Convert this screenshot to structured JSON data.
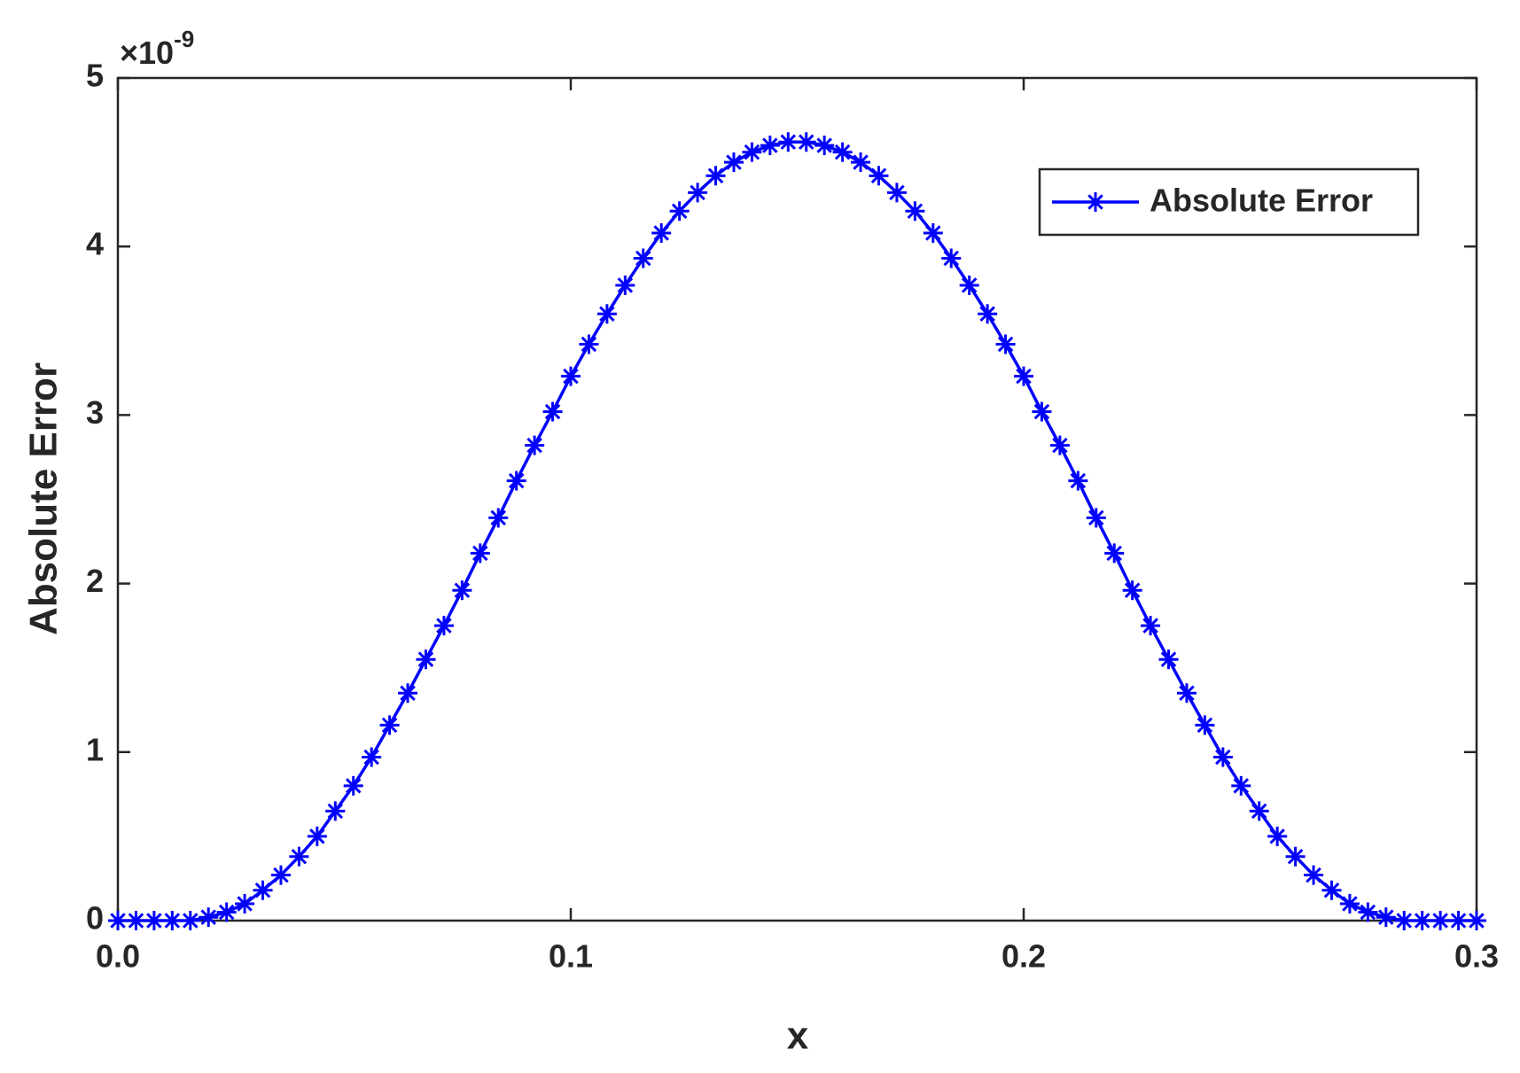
{
  "chart_data": {
    "type": "line",
    "xlabel": "x",
    "ylabel": "Absolute Error",
    "y_multiplier": {
      "base": "×10",
      "exponent": "-9"
    },
    "x": [
      0,
      0.004,
      0.008,
      0.012,
      0.016,
      0.02,
      0.024,
      0.028,
      0.032,
      0.036,
      0.04,
      0.044,
      0.048,
      0.052,
      0.056,
      0.06,
      0.064,
      0.068,
      0.072,
      0.076,
      0.08,
      0.084,
      0.088,
      0.092,
      0.096,
      0.1,
      0.104,
      0.108,
      0.112,
      0.116,
      0.12,
      0.124,
      0.128,
      0.132,
      0.136,
      0.14,
      0.144,
      0.148,
      0.152,
      0.156,
      0.16,
      0.164,
      0.168,
      0.172,
      0.176,
      0.18,
      0.184,
      0.188,
      0.192,
      0.196,
      0.2,
      0.204,
      0.208,
      0.212,
      0.216,
      0.22,
      0.224,
      0.228,
      0.232,
      0.236,
      0.24,
      0.244,
      0.248,
      0.252,
      0.256,
      0.26,
      0.264,
      0.268,
      0.272,
      0.276,
      0.28,
      0.284,
      0.288,
      0.292,
      0.296,
      0.3
    ],
    "series": [
      {
        "name": "Absolute Error",
        "color": "#0000ff",
        "marker": "asterisk",
        "values": [
          0,
          0,
          0,
          0,
          0,
          0.02,
          0.05,
          0.1,
          0.18,
          0.27,
          0.38,
          0.5,
          0.65,
          0.8,
          0.97,
          1.16,
          1.35,
          1.55,
          1.75,
          1.96,
          2.18,
          2.39,
          2.61,
          2.82,
          3.02,
          3.23,
          3.42,
          3.6,
          3.77,
          3.93,
          4.08,
          4.21,
          4.32,
          4.42,
          4.5,
          4.56,
          4.6,
          4.62,
          4.62,
          4.6,
          4.56,
          4.5,
          4.42,
          4.32,
          4.21,
          4.08,
          3.93,
          3.77,
          3.6,
          3.42,
          3.23,
          3.02,
          2.82,
          2.61,
          2.39,
          2.18,
          1.96,
          1.75,
          1.55,
          1.35,
          1.16,
          0.97,
          0.8,
          0.65,
          0.5,
          0.38,
          0.27,
          0.18,
          0.1,
          0.05,
          0.02,
          0,
          0,
          0,
          0,
          0
        ]
      }
    ],
    "xlim": [
      0,
      0.3
    ],
    "xticks": [
      {
        "value": 0,
        "label": "0.0"
      },
      0.1,
      0.2,
      0.3
    ],
    "ylim": [
      0,
      5
    ],
    "yticks": [
      0,
      1,
      2,
      3,
      4,
      5
    ],
    "grid": false,
    "legend": "upper right"
  }
}
